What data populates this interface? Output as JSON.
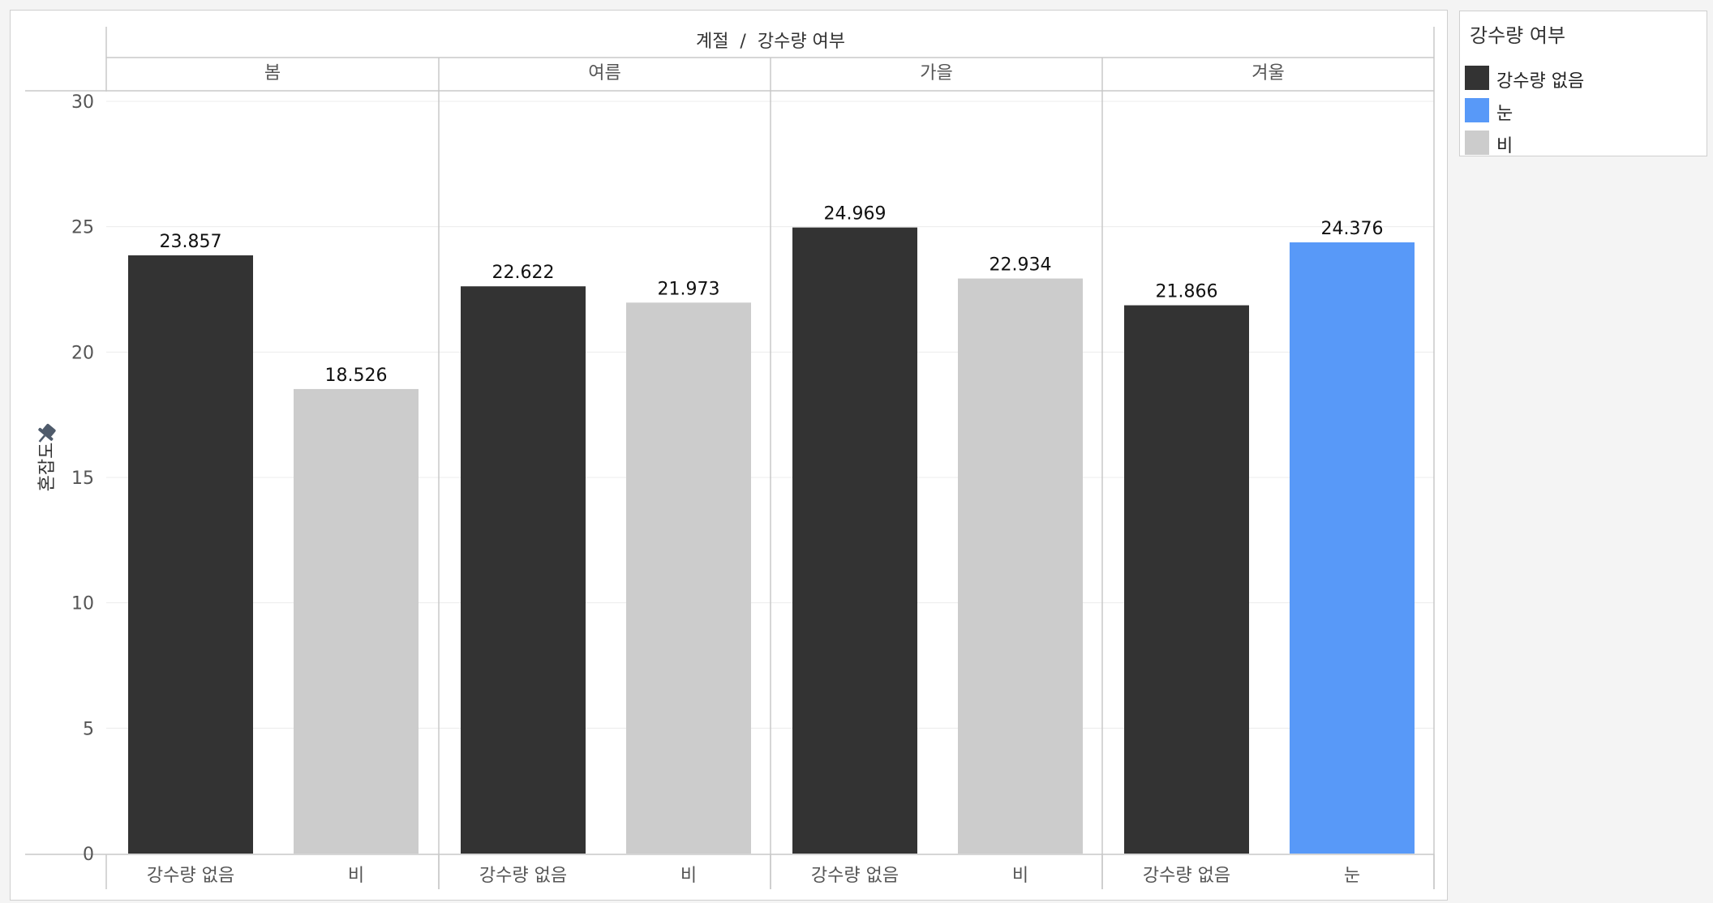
{
  "chart_data": {
    "type": "bar",
    "header_title": "계절  /  강수량 여부",
    "ylabel": "혼잡도",
    "ylim": [
      0,
      30
    ],
    "yticks": [
      0,
      5,
      10,
      15,
      20,
      25,
      30
    ],
    "grid": true,
    "legend_position": "top-right",
    "panels": [
      {
        "name": "봄",
        "bars": [
          {
            "category": "강수량 없음",
            "value": 23.857,
            "label": "23.857"
          },
          {
            "category": "비",
            "value": 18.526,
            "label": "18.526"
          }
        ]
      },
      {
        "name": "여름",
        "bars": [
          {
            "category": "강수량 없음",
            "value": 22.622,
            "label": "22.622"
          },
          {
            "category": "비",
            "value": 21.973,
            "label": "21.973"
          }
        ]
      },
      {
        "name": "가을",
        "bars": [
          {
            "category": "강수량 없음",
            "value": 24.969,
            "label": "24.969"
          },
          {
            "category": "비",
            "value": 22.934,
            "label": "22.934"
          }
        ]
      },
      {
        "name": "겨울",
        "bars": [
          {
            "category": "강수량 없음",
            "value": 21.866,
            "label": "21.866"
          },
          {
            "category": "눈",
            "value": 24.376,
            "label": "24.376"
          }
        ]
      }
    ],
    "legend": {
      "title": "강수량 여부",
      "items": [
        {
          "label": "강수량 없음",
          "color": "#333333"
        },
        {
          "label": "눈",
          "color": "#5899f8"
        },
        {
          "label": "비",
          "color": "#cccccc"
        }
      ]
    },
    "colors": {
      "강수량 없음": "#333333",
      "눈": "#5899f8",
      "비": "#cccccc"
    },
    "pin_icon": "pin-icon"
  }
}
